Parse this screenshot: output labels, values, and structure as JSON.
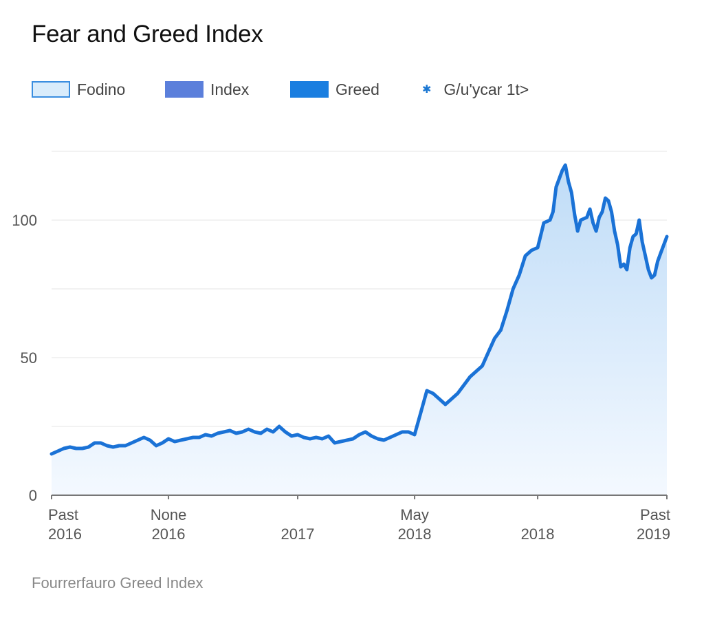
{
  "title": "Fear and Greed Index",
  "legend": [
    {
      "label": "Fodino",
      "icon": "swatch",
      "fill": "#d9ecfb",
      "stroke": "#3a8ee0"
    },
    {
      "label": "Index",
      "icon": "swatch",
      "fill": "#5b7fdb",
      "stroke": "#5b7fdb"
    },
    {
      "label": "Greed",
      "icon": "swatch",
      "fill": "#1a7ee0",
      "stroke": "#1a7ee0"
    },
    {
      "label": "G/u'ycar 1t>",
      "icon": "asterisk-icon",
      "fill": "#1976d2",
      "stroke": "#1976d2"
    }
  ],
  "footer": "Fourrerfauro Greed Index",
  "colors": {
    "line": "#1a72d6",
    "area_top": "#bfdcf7",
    "area_bottom": "#f4f9ff",
    "grid": "#e6e6e6",
    "axis": "#777777"
  },
  "chart_data": {
    "type": "area",
    "title": "Fear and Greed Index",
    "ylim": [
      0,
      130
    ],
    "yticks": [
      0,
      50,
      100
    ],
    "grid": true,
    "legend_position": "top",
    "x_tick_labels": [
      {
        "x": 0,
        "line1": "Past",
        "line2": "2016"
      },
      {
        "x": 0.19,
        "line1": "None",
        "line2": "2016"
      },
      {
        "x": 0.4,
        "line1": "",
        "line2": "2017"
      },
      {
        "x": 0.59,
        "line1": "May",
        "line2": "2018"
      },
      {
        "x": 0.79,
        "line1": "",
        "line2": "2018"
      },
      {
        "x": 1,
        "line1": "Past",
        "line2": "2019"
      }
    ],
    "series": [
      {
        "name": "Greed",
        "x": [
          0,
          0.01,
          0.02,
          0.03,
          0.04,
          0.05,
          0.06,
          0.07,
          0.08,
          0.09,
          0.1,
          0.11,
          0.12,
          0.13,
          0.14,
          0.15,
          0.16,
          0.17,
          0.18,
          0.19,
          0.2,
          0.21,
          0.22,
          0.23,
          0.24,
          0.25,
          0.26,
          0.27,
          0.28,
          0.29,
          0.3,
          0.31,
          0.32,
          0.33,
          0.34,
          0.35,
          0.36,
          0.37,
          0.38,
          0.39,
          0.4,
          0.41,
          0.42,
          0.43,
          0.44,
          0.45,
          0.46,
          0.47,
          0.48,
          0.49,
          0.5,
          0.51,
          0.52,
          0.53,
          0.54,
          0.55,
          0.56,
          0.57,
          0.58,
          0.59,
          0.6,
          0.61,
          0.62,
          0.63,
          0.64,
          0.65,
          0.66,
          0.67,
          0.68,
          0.69,
          0.7,
          0.71,
          0.72,
          0.73,
          0.74,
          0.75,
          0.76,
          0.77,
          0.78,
          0.79,
          0.8,
          0.81,
          0.815,
          0.82,
          0.83,
          0.835,
          0.84,
          0.845,
          0.85,
          0.855,
          0.86,
          0.87,
          0.875,
          0.88,
          0.885,
          0.89,
          0.895,
          0.9,
          0.905,
          0.91,
          0.915,
          0.92,
          0.925,
          0.93,
          0.935,
          0.94,
          0.945,
          0.95,
          0.955,
          0.96,
          0.965,
          0.97,
          0.975,
          0.98,
          0.985,
          0.99,
          0.995,
          1.0
        ],
        "values": [
          15,
          16,
          17,
          17.5,
          17,
          17,
          17.5,
          19,
          19,
          18,
          17.5,
          18,
          18,
          19,
          20,
          21,
          20,
          18,
          19,
          20.5,
          19.5,
          20,
          20.5,
          21,
          21,
          22,
          21.5,
          22.5,
          23,
          23.5,
          22.5,
          23,
          24,
          23,
          22.5,
          24,
          23,
          25,
          23,
          21.5,
          22,
          21,
          20.5,
          21,
          20.5,
          21.5,
          19,
          19.5,
          20,
          20.5,
          22,
          23,
          21.5,
          20.5,
          20,
          21,
          22,
          23,
          23,
          22,
          30,
          38,
          37,
          35,
          33,
          35,
          37,
          40,
          43,
          45,
          47,
          52,
          57,
          60,
          67,
          75,
          80,
          87,
          89,
          90,
          99,
          100,
          103,
          112,
          118,
          120,
          114,
          110,
          102,
          96,
          100,
          101,
          104,
          99,
          96,
          101,
          103,
          108,
          107,
          103,
          96,
          91,
          83,
          84,
          82,
          90,
          94,
          95,
          100,
          92,
          87,
          82,
          79,
          80,
          85,
          88,
          91,
          94
        ]
      }
    ]
  }
}
